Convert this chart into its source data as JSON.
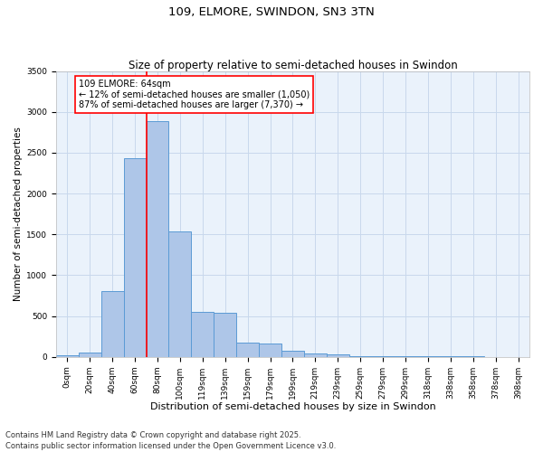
{
  "title": "109, ELMORE, SWINDON, SN3 3TN",
  "subtitle": "Size of property relative to semi-detached houses in Swindon",
  "xlabel": "Distribution of semi-detached houses by size in Swindon",
  "ylabel": "Number of semi-detached properties",
  "categories": [
    "0sqm",
    "20sqm",
    "40sqm",
    "60sqm",
    "80sqm",
    "100sqm",
    "119sqm",
    "139sqm",
    "159sqm",
    "179sqm",
    "199sqm",
    "219sqm",
    "239sqm",
    "259sqm",
    "279sqm",
    "299sqm",
    "318sqm",
    "338sqm",
    "358sqm",
    "378sqm",
    "398sqm"
  ],
  "bar_values": [
    20,
    55,
    800,
    2430,
    2890,
    1530,
    550,
    540,
    170,
    160,
    75,
    45,
    30,
    10,
    8,
    6,
    5,
    4,
    3,
    2,
    2
  ],
  "bar_color": "#aec6e8",
  "bar_edge_color": "#5b9bd5",
  "background_color": "#eaf2fb",
  "grid_color": "#c8d8ec",
  "red_line_x": 3.5,
  "annotation_text": "109 ELMORE: 64sqm\n← 12% of semi-detached houses are smaller (1,050)\n87% of semi-detached houses are larger (7,370) →",
  "ylim": [
    0,
    3500
  ],
  "yticks": [
    0,
    500,
    1000,
    1500,
    2000,
    2500,
    3000,
    3500
  ],
  "footnote": "Contains HM Land Registry data © Crown copyright and database right 2025.\nContains public sector information licensed under the Open Government Licence v3.0.",
  "title_fontsize": 9.5,
  "subtitle_fontsize": 8.5,
  "xlabel_fontsize": 8,
  "ylabel_fontsize": 7.5,
  "tick_fontsize": 6.5,
  "annot_fontsize": 7,
  "footnote_fontsize": 6
}
